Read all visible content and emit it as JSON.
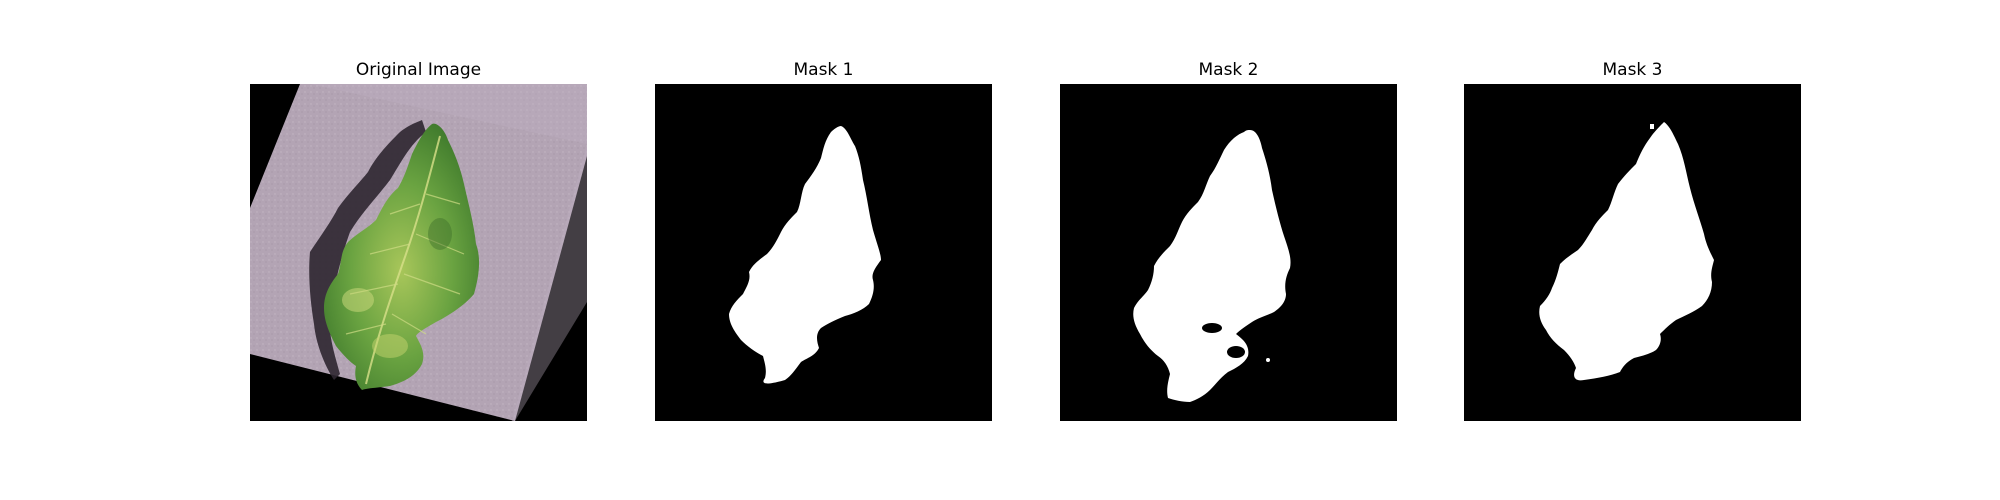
{
  "figure": {
    "panels": [
      {
        "title": "Original Image"
      },
      {
        "title": "Mask 1"
      },
      {
        "title": "Mask 2"
      },
      {
        "title": "Mask 3"
      }
    ]
  },
  "colors": {
    "background": "#000000",
    "mask": "#ffffff",
    "paper": "#b5a5b5",
    "leaf": "#5e9a3e",
    "leaf_light": "#b9cf6a",
    "shadow": "#2d2630"
  }
}
